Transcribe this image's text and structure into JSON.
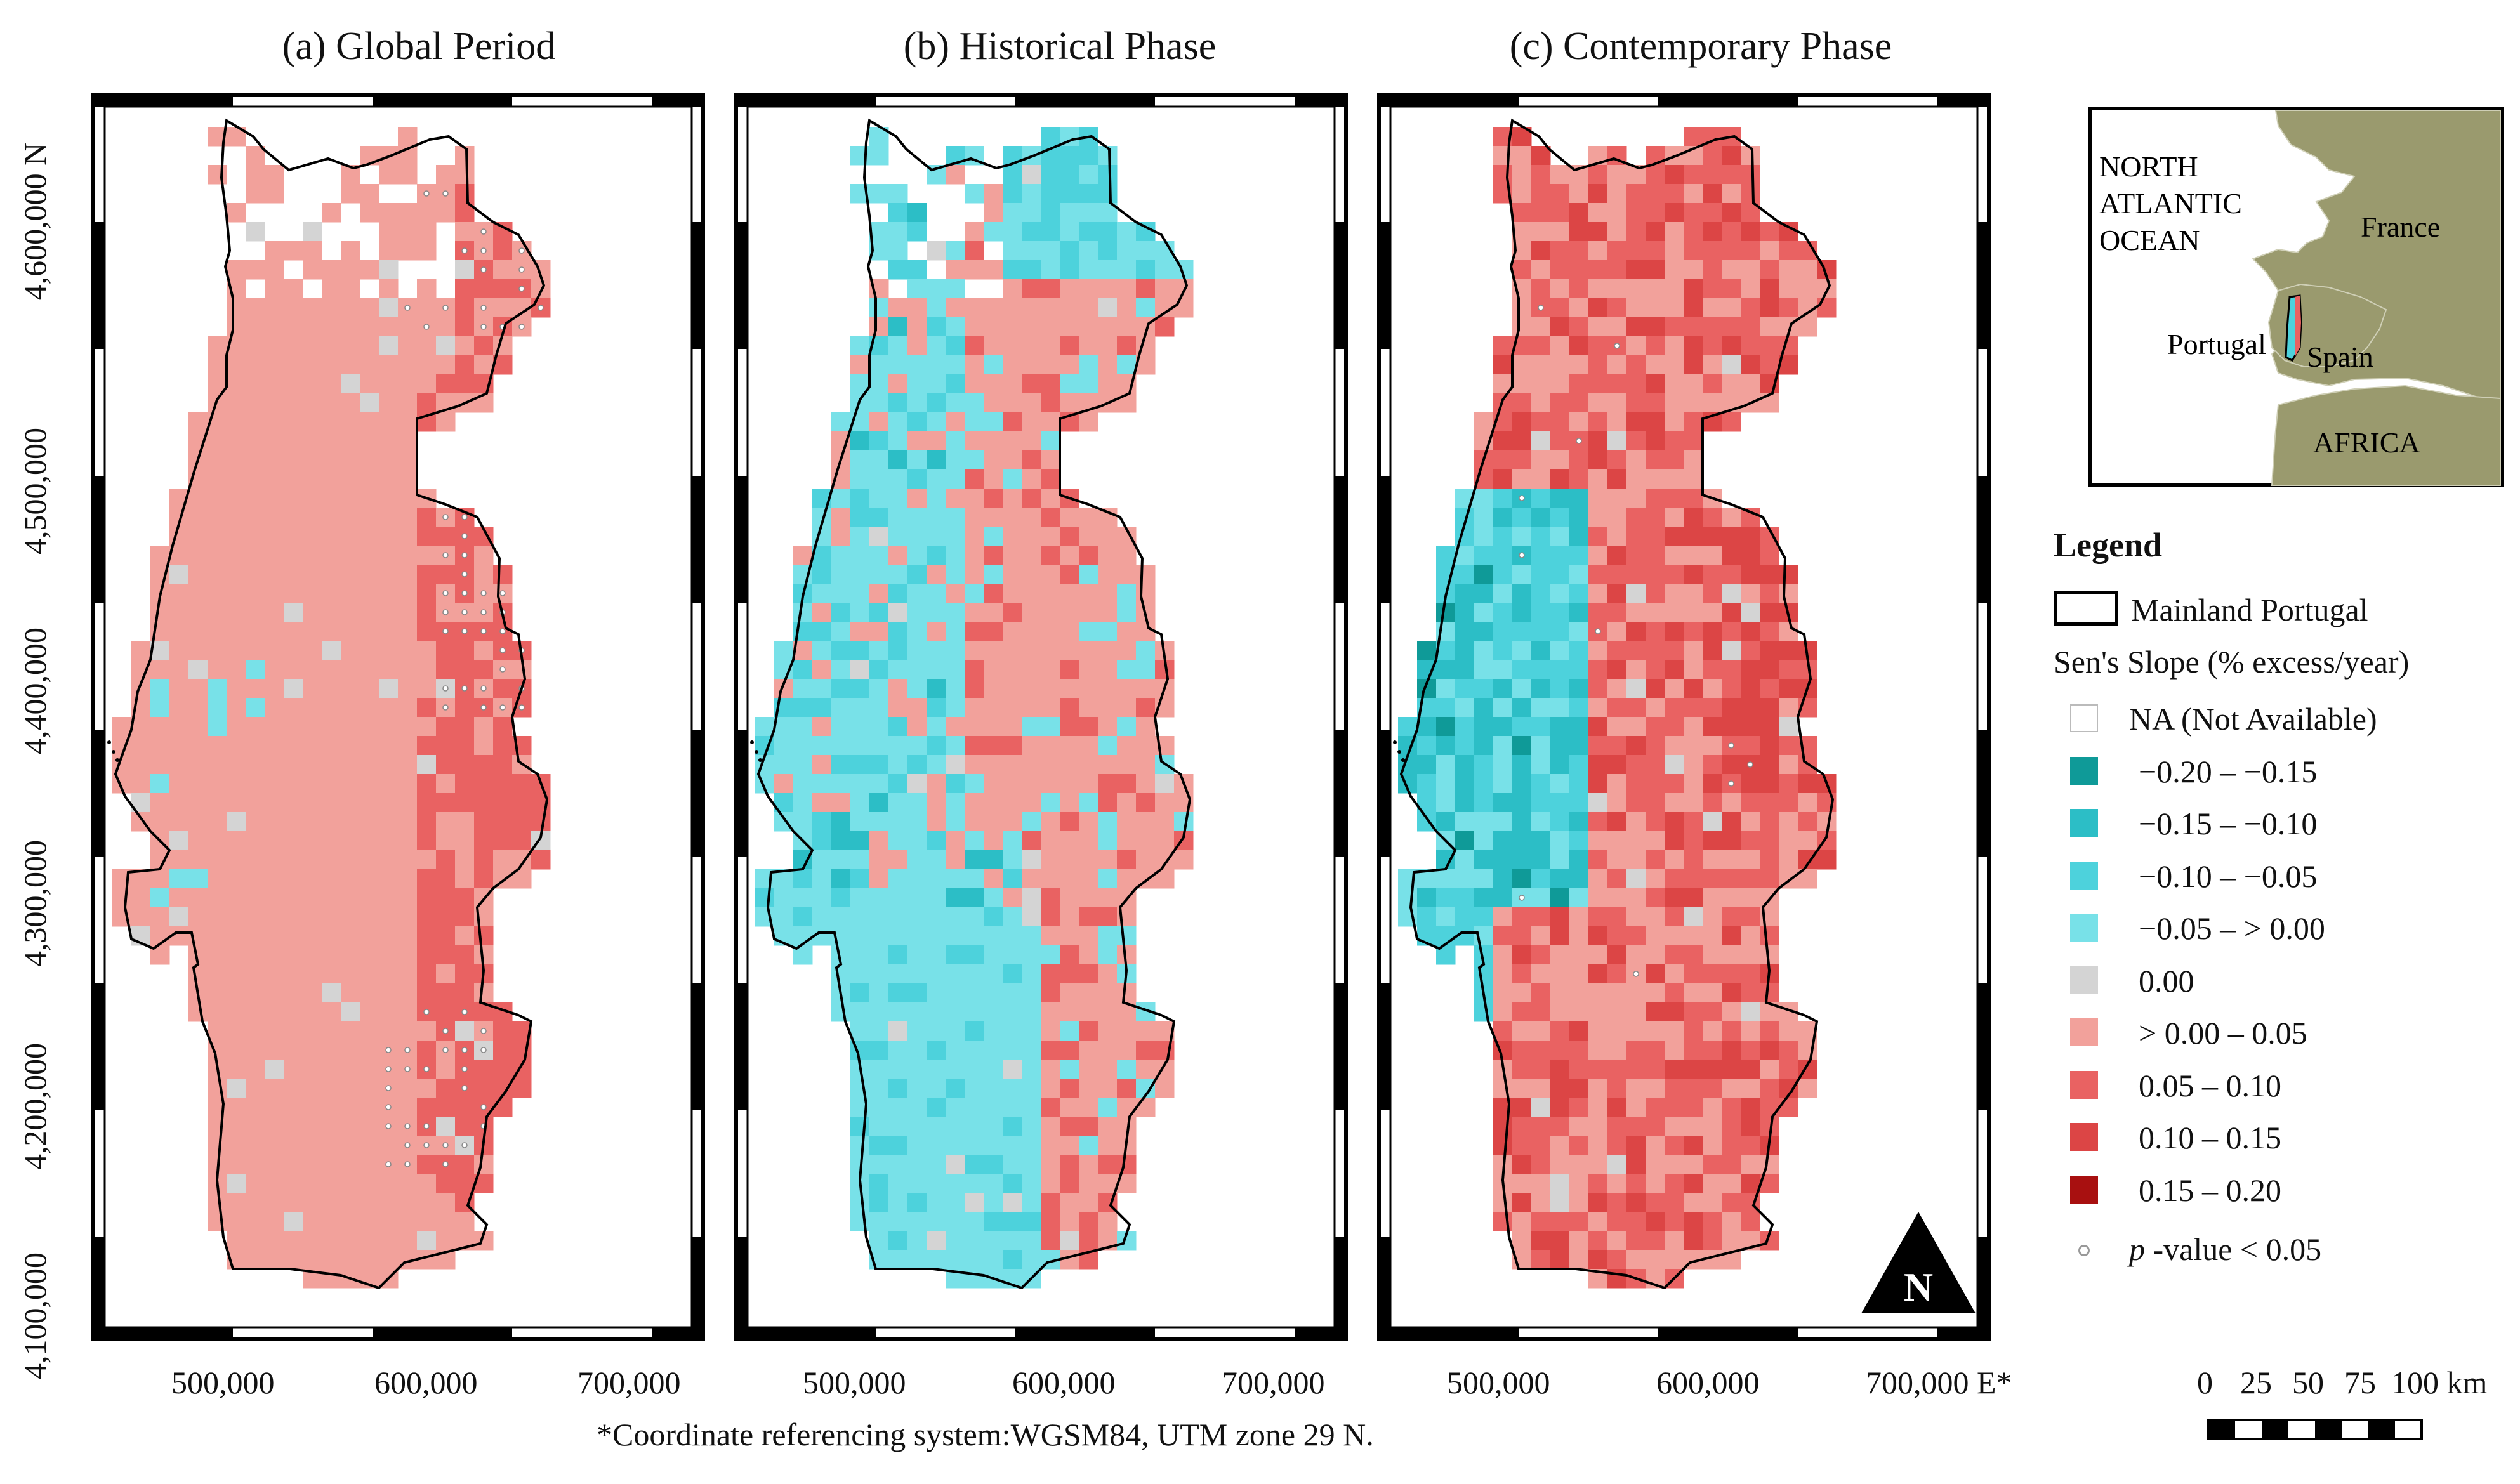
{
  "panels": [
    {
      "title": "(a) Global Period",
      "scheme": "global"
    },
    {
      "title": "(b) Historical Phase",
      "scheme": "historical"
    },
    {
      "title": "(c) Contemporary Phase",
      "scheme": "contemporary"
    }
  ],
  "x_ticks": [
    "500,000",
    "600,000",
    "700,000"
  ],
  "x_unit_suffix": "E*",
  "y_ticks": [
    "4,600,000 N",
    "4,500,000",
    "4,400,000",
    "4,300,000",
    "4,200,000",
    "4,100,000"
  ],
  "footnote": "*Coordinate referencing system:WGSM84, UTM zone 29 N.",
  "north_arrow": "N",
  "inset": {
    "ocean_label": [
      "NORTH",
      "ATLANTIC",
      "OCEAN"
    ],
    "france": "France",
    "portugal": "Portugal",
    "spain": "Spain",
    "africa": "AFRICA",
    "land_color": "#9a9a6e",
    "sea_color": "#ffffff"
  },
  "legend": {
    "title": "Legend",
    "boundary_label": "Mainland Portugal",
    "scale_title": "Sen's Slope (% excess/year)",
    "classes": [
      {
        "label": "NA (Not Available)",
        "color": "#ffffff"
      },
      {
        "label": "−0.20 – −0.15",
        "color": "#0f9a98"
      },
      {
        "label": "−0.15 – −0.10",
        "color": "#2cbec6"
      },
      {
        "label": "−0.10 – −0.05",
        "color": "#4dd2dc"
      },
      {
        "label": "−0.05 – > 0.00",
        "color": "#78e1e8"
      },
      {
        "label": "0.00",
        "color": "#d4d4d4"
      },
      {
        "label": "> 0.00 – 0.05",
        "color": "#f2a19b"
      },
      {
        "label": "0.05 – 0.10",
        "color": "#e96262"
      },
      {
        "label": "0.10 – 0.15",
        "color": "#dc4545"
      },
      {
        "label": "0.15 – 0.20",
        "color": "#a81010"
      }
    ],
    "pvalue_label_italic": "p",
    "pvalue_label_rest": " -value < 0.05"
  },
  "scale_bar": {
    "labels": [
      "0",
      "25",
      "50",
      "75",
      "100 km"
    ]
  }
}
